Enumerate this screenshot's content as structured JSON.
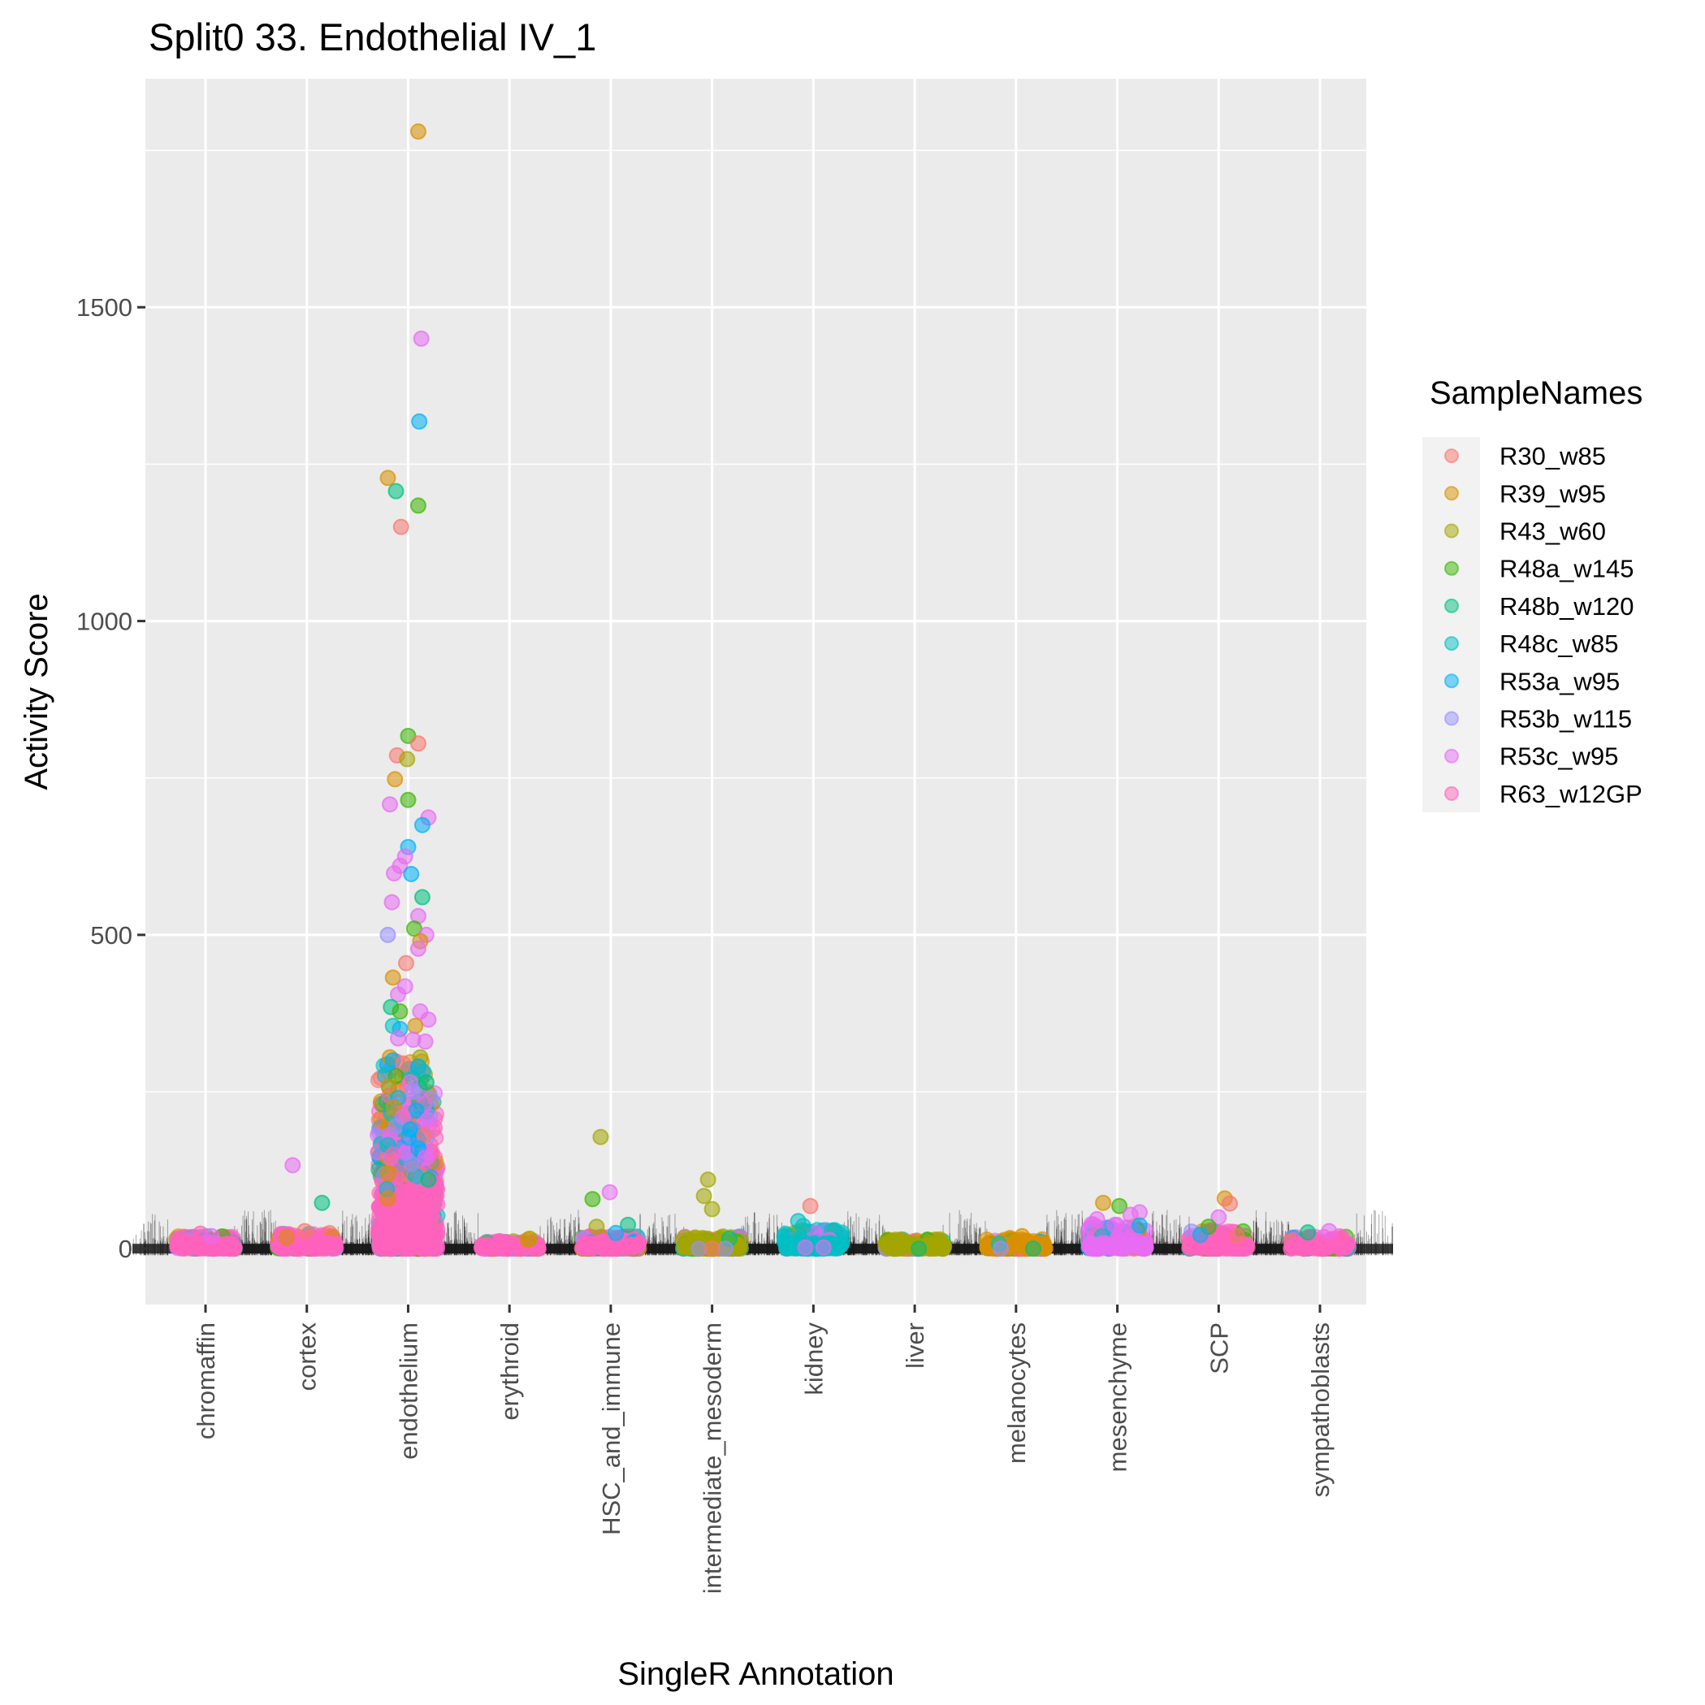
{
  "chart_data": {
    "type": "scatter",
    "subtype": "jitter-strip-with-rug",
    "title": "Split0 33. Endothelial IV_1",
    "xlabel": "SingleR Annotation",
    "ylabel": "Activity Score",
    "ylim": [
      -89,
      1864
    ],
    "yticks": [
      0,
      500,
      1000,
      1500
    ],
    "ytick_labels": [
      "0",
      "500",
      "1000",
      "1500"
    ],
    "y_minor_gridlines": [
      250,
      750,
      1250,
      1750
    ],
    "grid": true,
    "categories": [
      "chromaffin",
      "cortex",
      "endothelium",
      "erythroid",
      "HSC_and_immune",
      "intermediate_mesoderm",
      "kidney",
      "liver",
      "melanocytes",
      "mesenchyme",
      "SCP",
      "sympathoblasts"
    ],
    "legend": {
      "title": "SampleNames",
      "placement": "right",
      "entries": [
        {
          "name": "R30_w85",
          "color": "#F8766D"
        },
        {
          "name": "R39_w95",
          "color": "#D89000"
        },
        {
          "name": "R43_w60",
          "color": "#A3A500"
        },
        {
          "name": "R48a_w145",
          "color": "#39B600"
        },
        {
          "name": "R48b_w120",
          "color": "#00BF7D"
        },
        {
          "name": "R48c_w85",
          "color": "#00BFC4"
        },
        {
          "name": "R53a_w95",
          "color": "#00B0F6"
        },
        {
          "name": "R53b_w115",
          "color": "#9590FF"
        },
        {
          "name": "R53c_w95",
          "color": "#E76BF3"
        },
        {
          "name": "R63_w12GP",
          "color": "#FF62BC"
        }
      ]
    },
    "bulk_clusters": [
      {
        "category": "chromaffin",
        "dominant": "R63_w12GP",
        "max_typical": 20
      },
      {
        "category": "cortex",
        "dominant": "R63_w12GP",
        "max_typical": 25
      },
      {
        "category": "endothelium",
        "dominant": "R63_w12GP",
        "max_typical": 150
      },
      {
        "category": "erythroid",
        "dominant": "R63_w12GP",
        "max_typical": 12
      },
      {
        "category": "HSC_and_immune",
        "dominant": "R63_w12GP",
        "max_typical": 20
      },
      {
        "category": "intermediate_mesoderm",
        "dominant": "R43_w60",
        "max_typical": 20
      },
      {
        "category": "kidney",
        "dominant": "R48c_w85",
        "max_typical": 30
      },
      {
        "category": "liver",
        "dominant": "R43_w60",
        "max_typical": 15
      },
      {
        "category": "melanocytes",
        "dominant": "R39_w95",
        "max_typical": 15
      },
      {
        "category": "mesenchyme",
        "dominant": "R53c_w95",
        "max_typical": 40
      },
      {
        "category": "SCP",
        "dominant": "R63_w12GP",
        "max_typical": 30
      },
      {
        "category": "sympathoblasts",
        "dominant": "R63_w12GP",
        "max_typical": 20
      }
    ],
    "points": [
      {
        "category": "endothelium",
        "sample": "R39_w95",
        "y": 1780,
        "jitter": 0.1
      },
      {
        "category": "endothelium",
        "sample": "R53c_w95",
        "y": 1450,
        "jitter": 0.13
      },
      {
        "category": "endothelium",
        "sample": "R53a_w95",
        "y": 1318,
        "jitter": 0.11
      },
      {
        "category": "endothelium",
        "sample": "R39_w95",
        "y": 1228,
        "jitter": -0.2
      },
      {
        "category": "endothelium",
        "sample": "R48b_w120",
        "y": 1207,
        "jitter": -0.12
      },
      {
        "category": "endothelium",
        "sample": "R48a_w145",
        "y": 1184,
        "jitter": 0.1
      },
      {
        "category": "endothelium",
        "sample": "R30_w85",
        "y": 1150,
        "jitter": -0.07
      },
      {
        "category": "endothelium",
        "sample": "R48a_w145",
        "y": 817,
        "jitter": 0.0
      },
      {
        "category": "endothelium",
        "sample": "R30_w85",
        "y": 805,
        "jitter": 0.1
      },
      {
        "category": "endothelium",
        "sample": "R30_w85",
        "y": 786,
        "jitter": -0.11
      },
      {
        "category": "endothelium",
        "sample": "R43_w60",
        "y": 780,
        "jitter": -0.01
      },
      {
        "category": "endothelium",
        "sample": "R39_w95",
        "y": 748,
        "jitter": -0.13
      },
      {
        "category": "endothelium",
        "sample": "R48a_w145",
        "y": 715,
        "jitter": 0.0
      },
      {
        "category": "endothelium",
        "sample": "R53c_w95",
        "y": 708,
        "jitter": -0.18
      },
      {
        "category": "endothelium",
        "sample": "R53c_w95",
        "y": 687,
        "jitter": 0.2
      },
      {
        "category": "endothelium",
        "sample": "R53a_w95",
        "y": 675,
        "jitter": 0.14
      },
      {
        "category": "endothelium",
        "sample": "R53a_w95",
        "y": 640,
        "jitter": 0.0
      },
      {
        "category": "endothelium",
        "sample": "R53c_w95",
        "y": 625,
        "jitter": -0.03
      },
      {
        "category": "endothelium",
        "sample": "R53c_w95",
        "y": 610,
        "jitter": -0.08
      },
      {
        "category": "endothelium",
        "sample": "R53c_w95",
        "y": 598,
        "jitter": -0.14
      },
      {
        "category": "endothelium",
        "sample": "R53a_w95",
        "y": 597,
        "jitter": 0.03
      },
      {
        "category": "endothelium",
        "sample": "R48b_w120",
        "y": 560,
        "jitter": 0.14
      },
      {
        "category": "endothelium",
        "sample": "R53c_w95",
        "y": 552,
        "jitter": -0.16
      },
      {
        "category": "endothelium",
        "sample": "R53c_w95",
        "y": 530,
        "jitter": 0.1
      },
      {
        "category": "endothelium",
        "sample": "R48a_w145",
        "y": 510,
        "jitter": 0.06
      },
      {
        "category": "endothelium",
        "sample": "R53b_w115",
        "y": 500,
        "jitter": -0.2
      },
      {
        "category": "endothelium",
        "sample": "R53c_w95",
        "y": 500,
        "jitter": 0.18
      },
      {
        "category": "endothelium",
        "sample": "R39_w95",
        "y": 490,
        "jitter": 0.12
      },
      {
        "category": "endothelium",
        "sample": "R53c_w95",
        "y": 478,
        "jitter": 0.1
      },
      {
        "category": "endothelium",
        "sample": "R30_w85",
        "y": 455,
        "jitter": -0.02
      },
      {
        "category": "endothelium",
        "sample": "R39_w95",
        "y": 432,
        "jitter": -0.15
      },
      {
        "category": "endothelium",
        "sample": "R53c_w95",
        "y": 418,
        "jitter": -0.03
      },
      {
        "category": "endothelium",
        "sample": "R53c_w95",
        "y": 405,
        "jitter": -0.1
      },
      {
        "category": "endothelium",
        "sample": "R48b_w120",
        "y": 385,
        "jitter": -0.17
      },
      {
        "category": "endothelium",
        "sample": "R48a_w145",
        "y": 378,
        "jitter": -0.08
      },
      {
        "category": "endothelium",
        "sample": "R53c_w95",
        "y": 378,
        "jitter": 0.12
      },
      {
        "category": "endothelium",
        "sample": "R53c_w95",
        "y": 365,
        "jitter": 0.2
      },
      {
        "category": "endothelium",
        "sample": "R39_w95",
        "y": 355,
        "jitter": 0.07
      },
      {
        "category": "endothelium",
        "sample": "R48c_w85",
        "y": 355,
        "jitter": -0.15
      },
      {
        "category": "endothelium",
        "sample": "R53a_w95",
        "y": 350,
        "jitter": -0.08
      },
      {
        "category": "endothelium",
        "sample": "R53c_w95",
        "y": 335,
        "jitter": -0.1
      },
      {
        "category": "endothelium",
        "sample": "R53c_w95",
        "y": 333,
        "jitter": 0.05
      },
      {
        "category": "endothelium",
        "sample": "R53c_w95",
        "y": 330,
        "jitter": 0.17
      },
      {
        "category": "endothelium",
        "sample": "R39_w95",
        "y": 305,
        "jitter": -0.18
      },
      {
        "category": "endothelium",
        "sample": "R43_w60",
        "y": 305,
        "jitter": 0.12
      },
      {
        "category": "endothelium",
        "sample": "R53a_w95",
        "y": 300,
        "jitter": -0.15
      },
      {
        "category": "endothelium",
        "sample": "R30_w85",
        "y": 295,
        "jitter": -0.05
      },
      {
        "category": "endothelium",
        "sample": "R53a_w95",
        "y": 290,
        "jitter": 0.1
      },
      {
        "category": "endothelium",
        "sample": "R48c_w85",
        "y": 282,
        "jitter": 0.15
      },
      {
        "category": "endothelium",
        "sample": "R48a_w145",
        "y": 275,
        "jitter": -0.12
      },
      {
        "category": "endothelium",
        "sample": "R53c_w95",
        "y": 265,
        "jitter": 0.02
      },
      {
        "category": "endothelium",
        "sample": "R48b_w120",
        "y": 265,
        "jitter": 0.18
      },
      {
        "category": "endothelium",
        "sample": "R39_w95",
        "y": 258,
        "jitter": -0.19
      },
      {
        "category": "endothelium",
        "sample": "R53b_w115",
        "y": 250,
        "jitter": 0.05
      },
      {
        "category": "endothelium",
        "sample": "R48c_w85",
        "y": 240,
        "jitter": -0.1
      },
      {
        "category": "endothelium",
        "sample": "R53c_w95",
        "y": 230,
        "jitter": 0.16
      },
      {
        "category": "endothelium",
        "sample": "R39_w95",
        "y": 225,
        "jitter": -0.14
      },
      {
        "category": "endothelium",
        "sample": "R53a_w95",
        "y": 220,
        "jitter": 0.08
      },
      {
        "category": "endothelium",
        "sample": "R53c_w95",
        "y": 210,
        "jitter": -0.05
      },
      {
        "category": "endothelium",
        "sample": "R53c_w95",
        "y": 205,
        "jitter": 0.19
      },
      {
        "category": "endothelium",
        "sample": "R53b_w115",
        "y": 195,
        "jitter": -0.12
      },
      {
        "category": "endothelium",
        "sample": "R53a_w95",
        "y": 190,
        "jitter": 0.02
      },
      {
        "category": "endothelium",
        "sample": "R30_w85",
        "y": 180,
        "jitter": 0.16
      },
      {
        "category": "endothelium",
        "sample": "R53c_w95",
        "y": 175,
        "jitter": -0.18
      },
      {
        "category": "endothelium",
        "sample": "R48c_w85",
        "y": 165,
        "jitter": -0.2
      },
      {
        "category": "endothelium",
        "sample": "R53a_w95",
        "y": 160,
        "jitter": 0.1
      },
      {
        "category": "endothelium",
        "sample": "R63_w12GP",
        "y": 150,
        "jitter": -0.15
      },
      {
        "category": "endothelium",
        "sample": "R53c_w95",
        "y": 145,
        "jitter": 0.17
      },
      {
        "category": "endothelium",
        "sample": "R39_w95",
        "y": 120,
        "jitter": -0.2
      },
      {
        "category": "endothelium",
        "sample": "R48b_w120",
        "y": 110,
        "jitter": 0.2
      },
      {
        "category": "endothelium",
        "sample": "R48c_w85",
        "y": 95,
        "jitter": -0.21
      },
      {
        "category": "endothelium",
        "sample": "R39_w95",
        "y": 80,
        "jitter": -0.2
      },
      {
        "category": "cortex",
        "sample": "R53c_w95",
        "y": 133,
        "jitter": -0.14
      },
      {
        "category": "cortex",
        "sample": "R48b_w120",
        "y": 73,
        "jitter": 0.15
      },
      {
        "category": "cortex",
        "sample": "R30_w85",
        "y": 28,
        "jitter": -0.02
      },
      {
        "category": "cortex",
        "sample": "R39_w95",
        "y": 18,
        "jitter": -0.2
      },
      {
        "category": "chromaffin",
        "sample": "R63_w12GP",
        "y": 24,
        "jitter": -0.05
      },
      {
        "category": "chromaffin",
        "sample": "R53c_w95",
        "y": 20,
        "jitter": 0.06
      },
      {
        "category": "erythroid",
        "sample": "R43_w60",
        "y": 16,
        "jitter": 0.2
      },
      {
        "category": "erythroid",
        "sample": "R39_w95",
        "y": 14,
        "jitter": 0.18
      },
      {
        "category": "HSC_and_immune",
        "sample": "R43_w60",
        "y": 178,
        "jitter": -0.1
      },
      {
        "category": "HSC_and_immune",
        "sample": "R53c_w95",
        "y": 90,
        "jitter": -0.01
      },
      {
        "category": "HSC_and_immune",
        "sample": "R48a_w145",
        "y": 79,
        "jitter": -0.18
      },
      {
        "category": "HSC_and_immune",
        "sample": "R48b_w120",
        "y": 38,
        "jitter": 0.17
      },
      {
        "category": "HSC_and_immune",
        "sample": "R43_w60",
        "y": 35,
        "jitter": -0.14
      },
      {
        "category": "HSC_and_immune",
        "sample": "R53a_w95",
        "y": 25,
        "jitter": 0.05
      },
      {
        "category": "intermediate_mesoderm",
        "sample": "R43_w60",
        "y": 110,
        "jitter": -0.04
      },
      {
        "category": "intermediate_mesoderm",
        "sample": "R43_w60",
        "y": 84,
        "jitter": -0.08
      },
      {
        "category": "intermediate_mesoderm",
        "sample": "R43_w60",
        "y": 63,
        "jitter": 0.0
      },
      {
        "category": "intermediate_mesoderm",
        "sample": "R48b_w120",
        "y": 16,
        "jitter": 0.17
      },
      {
        "category": "intermediate_mesoderm",
        "sample": "R53b_w115",
        "y": 0,
        "jitter": -0.13
      },
      {
        "category": "intermediate_mesoderm",
        "sample": "R53b_w115",
        "y": 0,
        "jitter": 0.13
      },
      {
        "category": "intermediate_mesoderm",
        "sample": "R30_w85",
        "y": 0,
        "jitter": 0.0
      },
      {
        "category": "kidney",
        "sample": "R30_w85",
        "y": 68,
        "jitter": -0.03
      },
      {
        "category": "kidney",
        "sample": "R48c_w85",
        "y": 44,
        "jitter": -0.15
      },
      {
        "category": "kidney",
        "sample": "R48c_w85",
        "y": 36,
        "jitter": -0.1
      },
      {
        "category": "kidney",
        "sample": "R53c_w95",
        "y": 2,
        "jitter": -0.08
      },
      {
        "category": "kidney",
        "sample": "R53c_w95",
        "y": 2,
        "jitter": 0.1
      },
      {
        "category": "liver",
        "sample": "R48b_w120",
        "y": 0,
        "jitter": 0.04
      },
      {
        "category": "melanocytes",
        "sample": "R39_w95",
        "y": 20,
        "jitter": 0.06
      },
      {
        "category": "melanocytes",
        "sample": "R39_w95",
        "y": 17,
        "jitter": -0.06
      },
      {
        "category": "melanocytes",
        "sample": "R48c_w85",
        "y": 8,
        "jitter": -0.17
      },
      {
        "category": "melanocytes",
        "sample": "R53b_w115",
        "y": 0,
        "jitter": -0.15
      },
      {
        "category": "melanocytes",
        "sample": "R48b_w120",
        "y": 0,
        "jitter": 0.17
      },
      {
        "category": "mesenchyme",
        "sample": "R39_w95",
        "y": 73,
        "jitter": -0.14
      },
      {
        "category": "mesenchyme",
        "sample": "R48a_w145",
        "y": 68,
        "jitter": 0.02
      },
      {
        "category": "mesenchyme",
        "sample": "R53c_w95",
        "y": 58,
        "jitter": 0.22
      },
      {
        "category": "mesenchyme",
        "sample": "R53c_w95",
        "y": 54,
        "jitter": 0.13
      },
      {
        "category": "mesenchyme",
        "sample": "R53c_w95",
        "y": 47,
        "jitter": -0.2
      },
      {
        "category": "mesenchyme",
        "sample": "R53a_w95",
        "y": 37,
        "jitter": 0.22
      },
      {
        "category": "SCP",
        "sample": "R39_w95",
        "y": 80,
        "jitter": 0.06
      },
      {
        "category": "SCP",
        "sample": "R30_w85",
        "y": 72,
        "jitter": 0.11
      },
      {
        "category": "SCP",
        "sample": "R53c_w95",
        "y": 50,
        "jitter": 0.0
      },
      {
        "category": "SCP",
        "sample": "R48a_w145",
        "y": 35,
        "jitter": -0.1
      },
      {
        "category": "SCP",
        "sample": "R53a_w95",
        "y": 22,
        "jitter": -0.18
      },
      {
        "category": "SCP",
        "sample": "R30_w85",
        "y": 20,
        "jitter": 0.18
      },
      {
        "category": "sympathoblasts",
        "sample": "R53c_w95",
        "y": 28,
        "jitter": 0.09
      },
      {
        "category": "sympathoblasts",
        "sample": "R48b_w120",
        "y": 26,
        "jitter": -0.12
      }
    ]
  }
}
